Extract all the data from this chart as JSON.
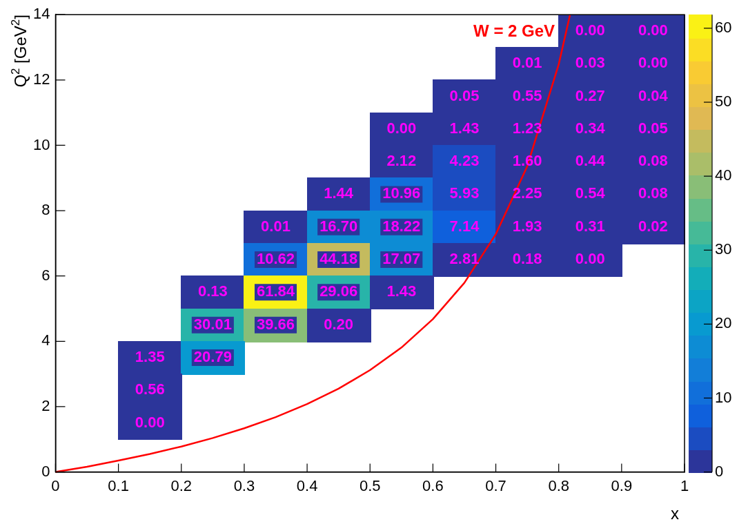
{
  "chart_data": {
    "type": "heatmap",
    "xlabel": "x",
    "ylabel": "Q$^{2}$ [GeV$^{2}$]",
    "x": [
      0.05,
      0.15,
      0.25,
      0.35,
      0.45,
      0.55,
      0.65,
      0.75,
      0.85,
      0.95
    ],
    "y": [
      13.5,
      12.5,
      11.5,
      10.5,
      9.5,
      8.5,
      7.5,
      6.5,
      5.5,
      4.5,
      3.5,
      2.5,
      1.5
    ],
    "xlim": [
      0,
      1
    ],
    "xticks": [
      0,
      0.1,
      0.2,
      0.3,
      0.4,
      0.5,
      0.6,
      0.7,
      0.8,
      0.9,
      1
    ],
    "ylim": [
      0,
      14
    ],
    "yticks": [
      0,
      2,
      4,
      6,
      8,
      10,
      12,
      14
    ],
    "clim": [
      0,
      61.84
    ],
    "cticks": [
      0,
      10,
      20,
      30,
      40,
      50,
      60
    ],
    "cells": [
      [
        null,
        null,
        null,
        null,
        null,
        null,
        null,
        null,
        0,
        0
      ],
      [
        null,
        null,
        null,
        null,
        null,
        null,
        null,
        0.01,
        0.03,
        0
      ],
      [
        null,
        null,
        null,
        null,
        null,
        null,
        0.05,
        0.55,
        0.27,
        0.04
      ],
      [
        null,
        null,
        null,
        null,
        null,
        0,
        1.43,
        1.23,
        0.34,
        0.05
      ],
      [
        null,
        null,
        null,
        null,
        null,
        2.12,
        4.23,
        1.6,
        0.44,
        0.08
      ],
      [
        null,
        null,
        null,
        null,
        1.44,
        10.96,
        5.93,
        2.25,
        0.54,
        0.08
      ],
      [
        null,
        null,
        null,
        0.01,
        16.7,
        18.22,
        7.14,
        1.93,
        0.31,
        0.02
      ],
      [
        null,
        null,
        null,
        10.62,
        44.18,
        17.07,
        2.81,
        0.18,
        0,
        null
      ],
      [
        null,
        null,
        0.13,
        61.84,
        29.06,
        1.43,
        null,
        null,
        null,
        null
      ],
      [
        null,
        null,
        30.01,
        39.66,
        0.2,
        null,
        null,
        null,
        null,
        null
      ],
      [
        null,
        1.35,
        20.79,
        null,
        null,
        null,
        null,
        null,
        null,
        null
      ],
      [
        null,
        0.56,
        null,
        null,
        null,
        null,
        null,
        null,
        null,
        null
      ],
      [
        null,
        0,
        null,
        null,
        null,
        null,
        null,
        null,
        null,
        null
      ]
    ],
    "cell_labels": [
      [
        null,
        null,
        null,
        null,
        null,
        null,
        null,
        null,
        "0.00",
        "0.00"
      ],
      [
        null,
        null,
        null,
        null,
        null,
        null,
        null,
        "0.01",
        "0.03",
        "0.00"
      ],
      [
        null,
        null,
        null,
        null,
        null,
        null,
        "0.05",
        "0.55",
        "0.27",
        "0.04"
      ],
      [
        null,
        null,
        null,
        null,
        null,
        "0.00",
        "1.43",
        "1.23",
        "0.34",
        "0.05"
      ],
      [
        null,
        null,
        null,
        null,
        null,
        "2.12",
        "4.23",
        "1.60",
        "0.44",
        "0.08"
      ],
      [
        null,
        null,
        null,
        null,
        "1.44",
        "10.96",
        "5.93",
        "2.25",
        "0.54",
        "0.08"
      ],
      [
        null,
        null,
        null,
        "0.01",
        "16.70",
        "18.22",
        "7.14",
        "1.93",
        "0.31",
        "0.02"
      ],
      [
        null,
        null,
        null,
        "10.62",
        "44.18",
        "17.07",
        "2.81",
        "0.18",
        "0.00",
        null
      ],
      [
        null,
        null,
        "0.13",
        "61.84",
        "29.06",
        "1.43",
        null,
        null,
        null,
        null
      ],
      [
        null,
        null,
        "30.01",
        "39.66",
        "0.20",
        null,
        null,
        null,
        null,
        null
      ],
      [
        null,
        "1.35",
        "20.79",
        null,
        null,
        null,
        null,
        null,
        null,
        null
      ],
      [
        null,
        "0.56",
        null,
        null,
        null,
        null,
        null,
        null,
        null,
        null
      ],
      [
        null,
        "0.00",
        null,
        null,
        null,
        null,
        null,
        null,
        null,
        null
      ]
    ],
    "series": [
      {
        "type": "line",
        "name": "W = 2 GeV",
        "color": "#ff0000",
        "x": [
          0,
          0.05,
          0.1,
          0.15,
          0.2,
          0.25,
          0.3,
          0.35,
          0.4,
          0.45,
          0.5,
          0.55,
          0.6,
          0.65,
          0.7,
          0.75,
          0.8,
          0.818
        ],
        "values": [
          0,
          0.16,
          0.35,
          0.55,
          0.78,
          1.04,
          1.34,
          1.68,
          2.08,
          2.55,
          3.12,
          3.81,
          4.68,
          5.79,
          7.28,
          9.36,
          12.48,
          14
        ]
      }
    ]
  }
}
